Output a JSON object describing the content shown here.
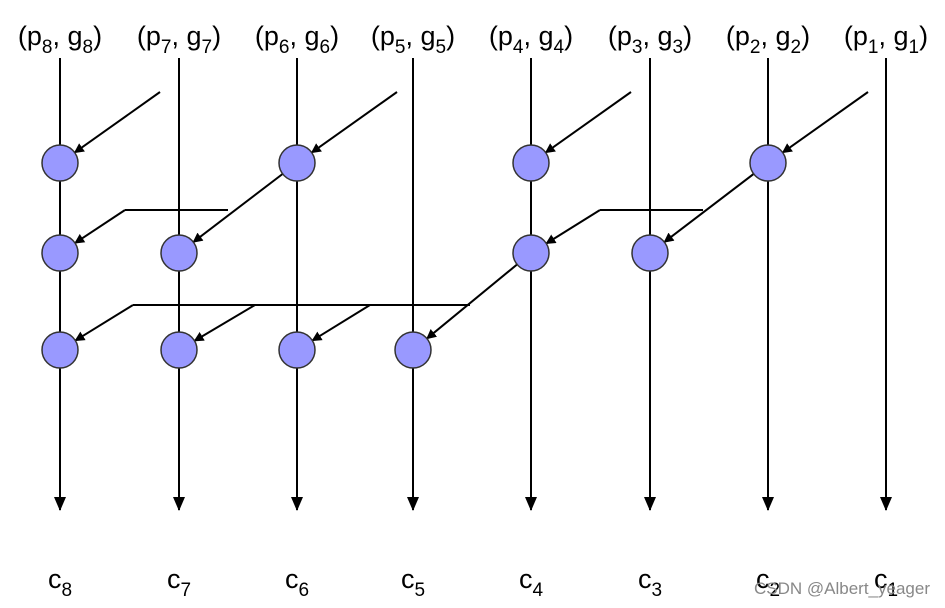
{
  "inputs": [
    {
      "parts": [
        "(p",
        "8",
        ", g",
        "8",
        ")"
      ]
    },
    {
      "parts": [
        "(p",
        "7",
        ", g",
        "7",
        ")"
      ]
    },
    {
      "parts": [
        "(p",
        "6",
        ", g",
        "6",
        ")"
      ]
    },
    {
      "parts": [
        "(p",
        "5",
        ", g",
        "5",
        ")"
      ]
    },
    {
      "parts": [
        "(p",
        "4",
        ", g",
        "4",
        ")"
      ]
    },
    {
      "parts": [
        "(p",
        "3",
        ", g",
        "3",
        ")"
      ]
    },
    {
      "parts": [
        "(p",
        "2",
        ", g",
        "2",
        ")"
      ]
    },
    {
      "parts": [
        "(p",
        "1",
        ", g",
        "1",
        ")"
      ]
    }
  ],
  "outputs": [
    {
      "parts": [
        "c",
        "8"
      ]
    },
    {
      "parts": [
        "c",
        "7"
      ]
    },
    {
      "parts": [
        "c",
        "6"
      ]
    },
    {
      "parts": [
        "c",
        "5"
      ]
    },
    {
      "parts": [
        "c",
        "4"
      ]
    },
    {
      "parts": [
        "c",
        "3"
      ]
    },
    {
      "parts": [
        "c",
        "2"
      ]
    },
    {
      "parts": [
        "c",
        "1"
      ]
    }
  ],
  "watermark": "CSDN @Albert_yeager"
}
